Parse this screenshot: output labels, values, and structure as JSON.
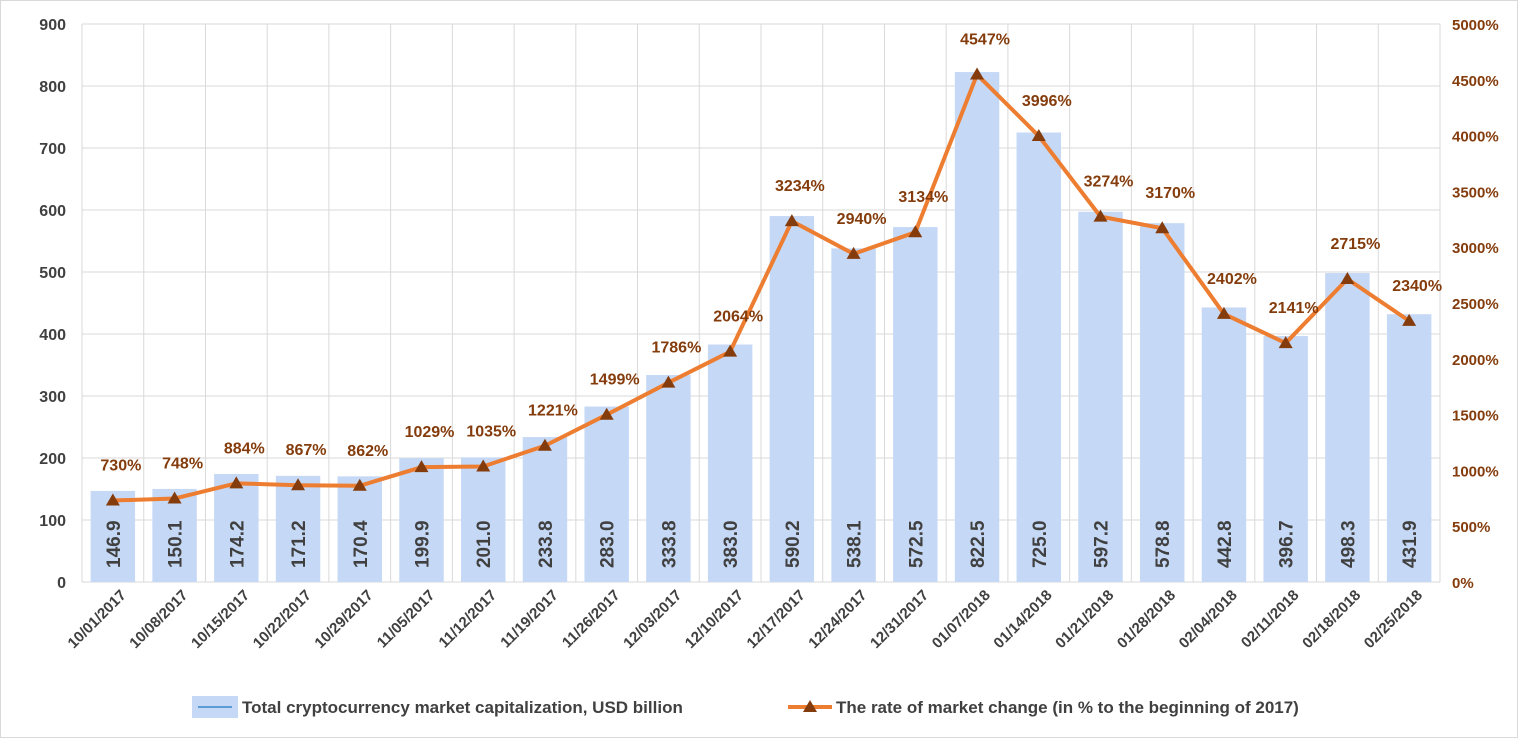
{
  "chart_data": {
    "type": "bar",
    "categories": [
      "10/01/2017",
      "10/08/2017",
      "10/15/2017",
      "10/22/2017",
      "10/29/2017",
      "11/05/2017",
      "11/12/2017",
      "11/19/2017",
      "11/26/2017",
      "12/03/2017",
      "12/10/2017",
      "12/17/2017",
      "12/24/2017",
      "12/31/2017",
      "01/07/2018",
      "01/14/2018",
      "01/21/2018",
      "01/28/2018",
      "02/04/2018",
      "02/11/2018",
      "02/18/2018",
      "02/25/2018"
    ],
    "series": [
      {
        "name": "Total cryptocurrency market capitalization, USD billion",
        "type": "bar",
        "axis": "left",
        "values": [
          146.9,
          150.1,
          174.2,
          171.2,
          170.4,
          199.9,
          201.0,
          233.8,
          283.0,
          333.8,
          383.0,
          590.2,
          538.1,
          572.5,
          822.5,
          725.0,
          597.2,
          578.8,
          442.8,
          396.7,
          498.3,
          431.9
        ],
        "labels": [
          "146.9",
          "150.1",
          "174.2",
          "171.2",
          "170.4",
          "199.9",
          "201.0",
          "233.8",
          "283.0",
          "333.8",
          "383.0",
          "590.2",
          "538.1",
          "572.5",
          "822.5",
          "725.0",
          "597.2",
          "578.8",
          "442.8",
          "396.7",
          "498.3",
          "431.9"
        ]
      },
      {
        "name": "The rate of market change (in % to the beginning of 2017)",
        "type": "line",
        "axis": "right",
        "values": [
          730,
          748,
          884,
          867,
          862,
          1029,
          1035,
          1221,
          1499,
          1786,
          2064,
          3234,
          2940,
          3134,
          4547,
          3996,
          3274,
          3170,
          2402,
          2141,
          2715,
          2340
        ],
        "labels": [
          "730%",
          "748%",
          "884%",
          "867%",
          "862%",
          "1029%",
          "1035%",
          "1221%",
          "1499%",
          "1786%",
          "2064%",
          "3234%",
          "2940%",
          "3134%",
          "4547%",
          "3996%",
          "3274%",
          "3170%",
          "2402%",
          "2141%",
          "2715%",
          "2340%"
        ]
      }
    ],
    "left_axis": {
      "ylim": [
        0,
        900
      ],
      "ticks": [
        "0",
        "100",
        "200",
        "300",
        "400",
        "500",
        "600",
        "700",
        "800",
        "900"
      ]
    },
    "right_axis": {
      "ylim": [
        0,
        5000
      ],
      "ticks": [
        "0%",
        "500%",
        "1000%",
        "1500%",
        "2000%",
        "2500%",
        "3000%",
        "3500%",
        "4000%",
        "4500%",
        "5000%"
      ]
    },
    "grid": true,
    "legend_position": "bottom",
    "colors": {
      "bar": "#c5d8f5",
      "line": "#ed7d31",
      "marker": "#843c0c",
      "label": "#843c0c",
      "text": "#404040",
      "grid": "#d9d9d9"
    }
  }
}
